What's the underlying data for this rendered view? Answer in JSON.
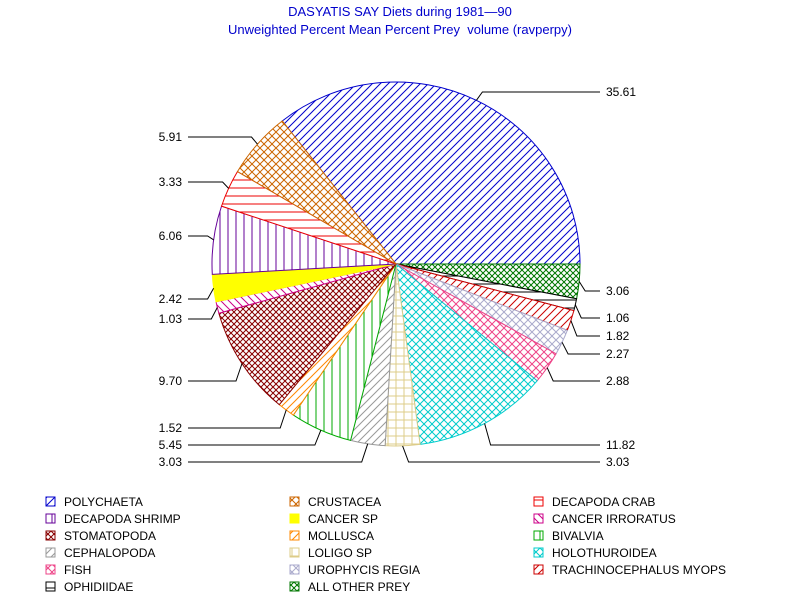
{
  "chart_data": {
    "type": "pie",
    "title": "DASYATIS SAY Diets during 1981—90",
    "subtitle": "Unweighted Percent Mean Percent Prey  volume (ravperpy)",
    "slices": [
      {
        "label": "POLYCHAETA",
        "value": 35.61,
        "value_label": "35.61",
        "color": "#0000cc",
        "pattern": "diag-up"
      },
      {
        "label": "ALL OTHER PREY",
        "value": 3.06,
        "value_label": "3.06",
        "color": "#007700",
        "pattern": "crosshatch-dense"
      },
      {
        "label": "OPHIDIIDAE",
        "value": 1.06,
        "value_label": "1.06",
        "color": "#000000",
        "pattern": "horizontal"
      },
      {
        "label": "TRACHINOCEPHALUS MYOPS",
        "value": 1.82,
        "value_label": "1.82",
        "color": "#cc0000",
        "pattern": "diag-up"
      },
      {
        "label": "UROPHYCIS REGIA",
        "value": 2.27,
        "value_label": "2.27",
        "color": "#aaaacc",
        "pattern": "crosshatch"
      },
      {
        "label": "FISH",
        "value": 2.88,
        "value_label": "2.88",
        "color": "#ee4488",
        "pattern": "crosshatch"
      },
      {
        "label": "HOLOTHUROIDEA",
        "value": 11.82,
        "value_label": "11.82",
        "color": "#00cccc",
        "pattern": "crosshatch"
      },
      {
        "label": "LOLIGO SP",
        "value": 3.03,
        "value_label": "3.03",
        "color": "#ddcc88",
        "pattern": "grid"
      },
      {
        "label": "CEPHALOPODA",
        "value": 3.03,
        "value_label": "3.03",
        "color": "#999999",
        "pattern": "diag-up"
      },
      {
        "label": "BIVALVIA",
        "value": 5.45,
        "value_label": "5.45",
        "color": "#00aa00",
        "pattern": "vertical"
      },
      {
        "label": "MOLLUSCA",
        "value": 1.52,
        "value_label": "1.52",
        "color": "#ff8800",
        "pattern": "diag-up"
      },
      {
        "label": "STOMATOPODA",
        "value": 9.7,
        "value_label": "9.70",
        "color": "#880000",
        "pattern": "crosshatch-dense"
      },
      {
        "label": "CANCER IRRORATUS",
        "value": 1.03,
        "value_label": "1.03",
        "color": "#cc0088",
        "pattern": "diag-down"
      },
      {
        "label": "CANCER SP",
        "value": 2.42,
        "value_label": "2.42",
        "color": "#ffff00",
        "pattern": "solid"
      },
      {
        "label": "DECAPODA SHRIMP",
        "value": 6.06,
        "value_label": "6.06",
        "color": "#660099",
        "pattern": "vertical"
      },
      {
        "label": "DECAPODA CRAB",
        "value": 3.33,
        "value_label": "3.33",
        "color": "#ee0000",
        "pattern": "horizontal"
      },
      {
        "label": "CRUSTACEA",
        "value": 5.91,
        "value_label": "5.91",
        "color": "#cc6600",
        "pattern": "crosshatch"
      }
    ],
    "legend": {
      "placement": "bottom",
      "columns": 3,
      "order": [
        "POLYCHAETA",
        "CRUSTACEA",
        "DECAPODA CRAB",
        "DECAPODA SHRIMP",
        "CANCER SP",
        "CANCER IRRORATUS",
        "STOMATOPODA",
        "MOLLUSCA",
        "BIVALVIA",
        "CEPHALOPODA",
        "LOLIGO SP",
        "HOLOTHUROIDEA",
        "FISH",
        "UROPHYCIS REGIA",
        "TRACHINOCEPHALUS MYOPS",
        "OPHIDIIDAE",
        "ALL OTHER PREY"
      ]
    }
  }
}
